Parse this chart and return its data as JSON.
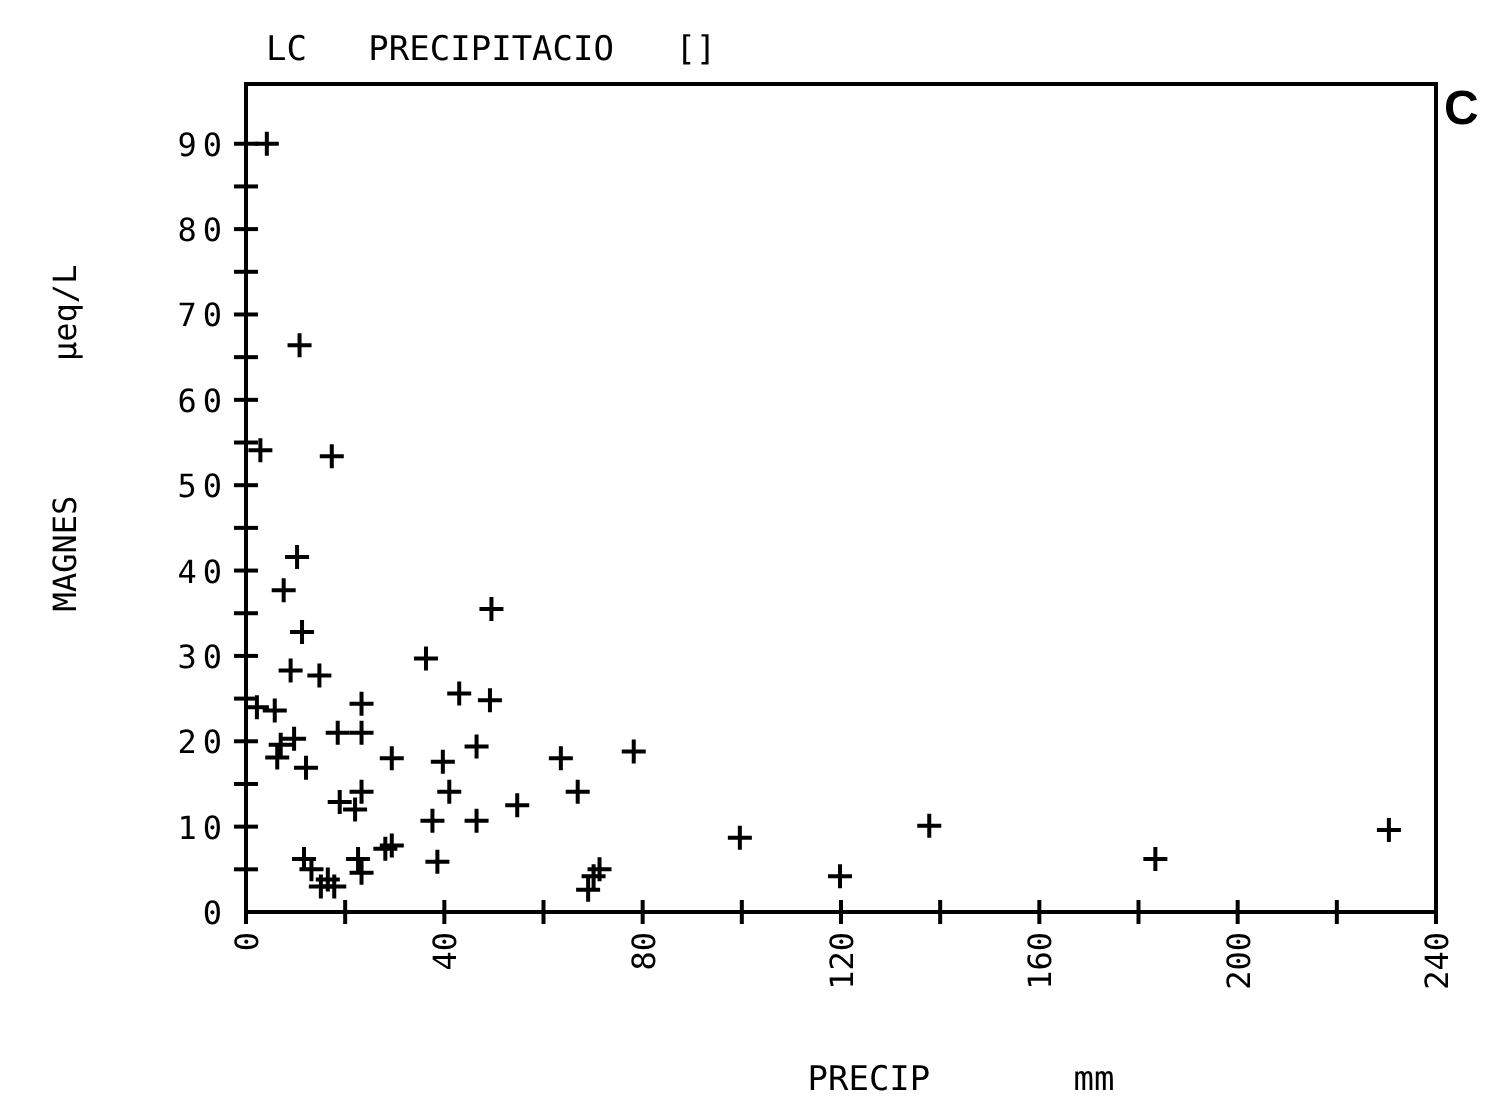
{
  "chart_data": {
    "type": "scatter",
    "title": "LC   PRECIPITACIO   []",
    "xlabel": "PRECIP       mm",
    "ylabel": "MAGNES       µeq/L",
    "annotations": [
      "C"
    ],
    "marker": "cross",
    "grid": false,
    "xlim": [
      0,
      240
    ],
    "ylim": [
      0,
      97
    ],
    "xticks": [
      0,
      {
        "value": 20,
        "label": null
      },
      40,
      {
        "value": 60,
        "label": null
      },
      80,
      {
        "value": 100,
        "label": null
      },
      120,
      {
        "value": 140,
        "label": null
      },
      160,
      {
        "value": 180,
        "label": null
      },
      200,
      {
        "value": 220,
        "label": null
      },
      240
    ],
    "yticks": [
      0,
      {
        "value": 5,
        "label": null
      },
      10,
      {
        "value": 15,
        "label": null
      },
      20,
      {
        "value": 25,
        "label": null
      },
      30,
      {
        "value": 35,
        "label": null
      },
      40,
      {
        "value": 45,
        "label": null
      },
      50,
      {
        "value": 55,
        "label": null
      },
      60,
      {
        "value": 65,
        "label": null
      },
      70,
      {
        "value": 75,
        "label": null
      },
      80,
      {
        "value": 85,
        "label": null
      },
      90
    ],
    "series": [
      {
        "color": "#000000",
        "x": [
          4.2,
          10.8,
          2.9,
          17.3,
          10.3,
          7.6,
          11.3,
          9,
          14.8,
          49.5,
          36.3,
          43,
          49.2,
          23.3,
          2.2,
          5.8,
          18.5,
          23.3,
          7,
          9.7,
          6.3,
          12.1,
          29.4,
          46.5,
          39.7,
          63.5,
          78.2,
          41,
          23.3,
          66.9,
          18.9,
          22,
          54.7,
          37.6,
          46.5,
          99.6,
          11.7,
          13.2,
          16.5,
          17.8,
          15.1,
          22.6,
          23.3,
          28.1,
          29.4,
          38.6,
          71.3,
          69,
          70.1,
          119.8,
          137.8,
          183.4,
          230.5
        ],
        "values": [
          90,
          66.4,
          54.1,
          53.4,
          41.6,
          37.7,
          32.8,
          28.3,
          27.7,
          35.5,
          29.7,
          25.6,
          24.8,
          24.4,
          24,
          23.6,
          21,
          21,
          19.6,
          20.3,
          18.1,
          16.9,
          18,
          19.4,
          17.6,
          18,
          18.8,
          14.1,
          14.1,
          14.1,
          12.9,
          12,
          12.5,
          10.7,
          10.7,
          8.7,
          6.2,
          5,
          3.8,
          3,
          3,
          6.2,
          4.6,
          7.4,
          7.8,
          5.9,
          5,
          2.6,
          4.2,
          4.2,
          10.1,
          6.2,
          9.6
        ]
      }
    ]
  }
}
